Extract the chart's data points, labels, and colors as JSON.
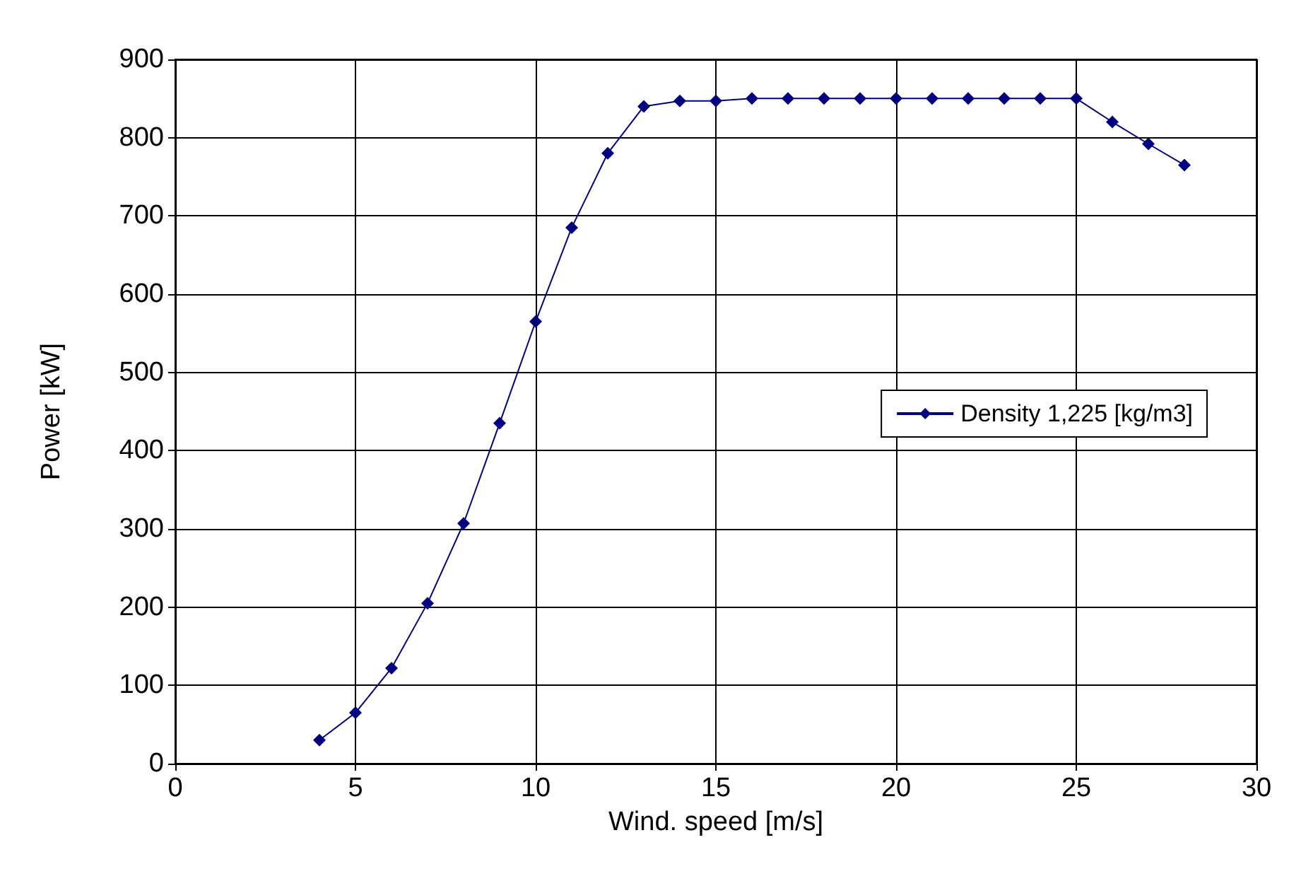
{
  "chart_data": {
    "type": "line",
    "xlabel": "Wind. speed [m/s]",
    "ylabel": "Power [kW]",
    "x": [
      4,
      5,
      6,
      7,
      8,
      9,
      10,
      11,
      12,
      13,
      14,
      15,
      16,
      17,
      18,
      19,
      20,
      21,
      22,
      23,
      24,
      25,
      26,
      27,
      28
    ],
    "series": [
      {
        "name": "Density 1,225 [kg/m3]",
        "color": "#000080",
        "values": [
          30,
          65,
          122,
          205,
          307,
          435,
          565,
          685,
          780,
          840,
          847,
          847,
          850,
          850,
          850,
          850,
          850,
          850,
          850,
          850,
          850,
          850,
          820,
          792,
          765
        ]
      }
    ],
    "xlim": [
      0,
      30
    ],
    "xticks": [
      0,
      5,
      10,
      15,
      20,
      25,
      30
    ],
    "ylim": [
      0,
      900
    ],
    "yticks": [
      0,
      100,
      200,
      300,
      400,
      500,
      600,
      700,
      800,
      900
    ],
    "grid": true,
    "legend": "right",
    "marker": "diamond",
    "line_style": "solid"
  }
}
